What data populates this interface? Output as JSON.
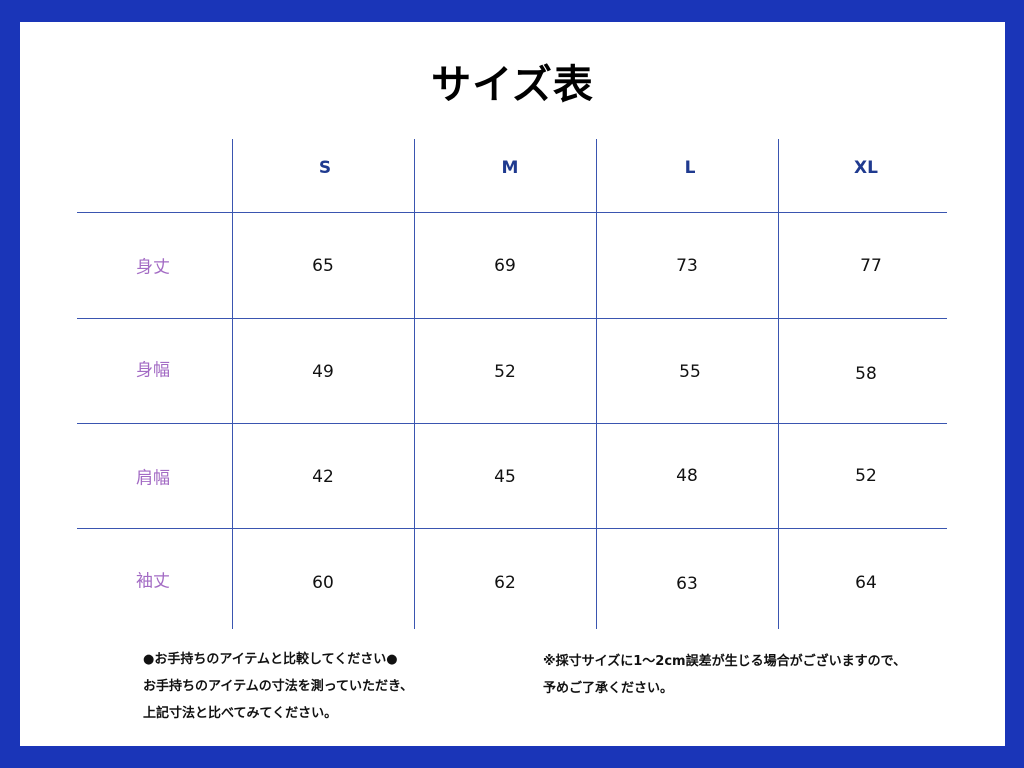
{
  "title": "サイズ表",
  "columns": [
    "S",
    "M",
    "L",
    "XL"
  ],
  "rows": [
    {
      "label": "身丈",
      "values": [
        "65",
        "69",
        "73",
        "77"
      ]
    },
    {
      "label": "身幅",
      "values": [
        "49",
        "52",
        "55",
        "58"
      ]
    },
    {
      "label": "肩幅",
      "values": [
        "42",
        "45",
        "48",
        "52"
      ]
    },
    {
      "label": "袖丈",
      "values": [
        "60",
        "62",
        "63",
        "64"
      ]
    }
  ],
  "notes": {
    "left": [
      "●お手持ちのアイテムと比較してください●",
      "お手持ちのアイテムの寸法を測っていただき、",
      "上記寸法と比べてみてください。"
    ],
    "right": [
      "※採寸サイズに1～2cm誤差が生じる場合がございますので、",
      "予めご了承ください。"
    ]
  },
  "colors": {
    "frame": "#1a35b8",
    "grid": "#3a55b0",
    "column_header": "#1f3a8f",
    "row_header": "#a36bc4"
  }
}
